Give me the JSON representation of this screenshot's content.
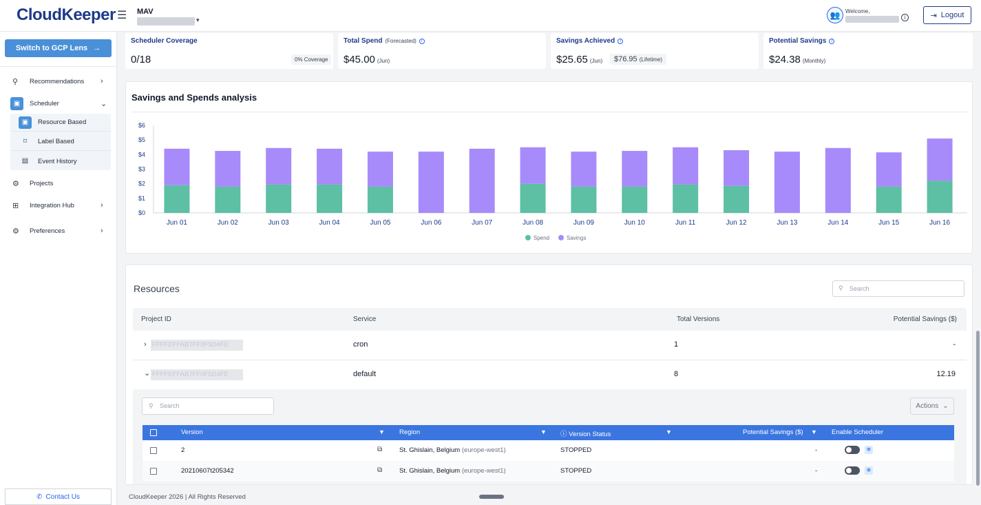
{
  "app": {
    "logo": "CloudKeeper",
    "org_name": "MAV",
    "welcome": "Welcome,",
    "logout_label": "Logout"
  },
  "sidebar": {
    "switch_label": "Switch to GCP Lens",
    "items": [
      {
        "label": "Recommendations",
        "icon": "wrench-icon"
      },
      {
        "label": "Scheduler",
        "icon": "calendar-icon"
      },
      {
        "label": "Projects",
        "icon": "projects-icon"
      },
      {
        "label": "Integration Hub",
        "icon": "grid-icon"
      },
      {
        "label": "Preferences",
        "icon": "gear-icon"
      }
    ],
    "scheduler_sub": [
      {
        "label": "Resource Based"
      },
      {
        "label": "Label Based"
      },
      {
        "label": "Event History"
      }
    ],
    "contact_label": "Contact Us"
  },
  "kpis": {
    "coverage": {
      "title": "Scheduler Coverage",
      "value": "0/18",
      "badge": "0% Coverage"
    },
    "spend": {
      "title": "Total Spend",
      "sub": "(Forecasted)",
      "value": "$45.00",
      "period": "(Jun)"
    },
    "savings": {
      "title": "Savings Achieved",
      "value": "$25.65",
      "period": "(Jun)",
      "lifetime_value": "$76.95",
      "lifetime_label": "(Lifetime)"
    },
    "potential": {
      "title": "Potential Savings",
      "value": "$24.38",
      "period": "(Monthly)"
    }
  },
  "chart_title": "Savings and Spends analysis",
  "chart_data": {
    "type": "bar",
    "stacked": true,
    "categories": [
      "Jun 01",
      "Jun 02",
      "Jun 03",
      "Jun 04",
      "Jun 05",
      "Jun 06",
      "Jun 07",
      "Jun 08",
      "Jun 09",
      "Jun 10",
      "Jun 11",
      "Jun 12",
      "Jun 13",
      "Jun 14",
      "Jun 15",
      "Jun 16"
    ],
    "series": [
      {
        "name": "Spend",
        "color": "#5dbfa4",
        "values": [
          1.9,
          1.8,
          1.95,
          1.95,
          1.8,
          0,
          0,
          2.0,
          1.8,
          1.8,
          1.95,
          1.85,
          0,
          0,
          1.8,
          2.2
        ]
      },
      {
        "name": "Savings",
        "color": "#a78bfa",
        "values": [
          2.5,
          2.45,
          2.5,
          2.45,
          2.4,
          4.2,
          4.4,
          2.5,
          2.4,
          2.45,
          2.55,
          2.45,
          4.2,
          4.45,
          2.35,
          2.9
        ]
      }
    ],
    "yticks": [
      "$0",
      "$1",
      "$2",
      "$3",
      "$4",
      "$5",
      "$6"
    ],
    "ylim": [
      0,
      6
    ],
    "legend": "bottom-center",
    "grid": false
  },
  "resources": {
    "title": "Resources",
    "search_placeholder": "Search",
    "columns": [
      "Project ID",
      "Service",
      "Total Versions",
      "Potential Savings ($)"
    ],
    "rows": [
      {
        "project_id": "FFFFEFFAB7FF0F5D4FE",
        "service": "cron",
        "versions": "1",
        "savings": "-",
        "caret": "›"
      },
      {
        "project_id": "FFFFEFFAB7FF0F5D4FE",
        "service": "default",
        "versions": "8",
        "savings": "12.19",
        "caret": "⌄"
      }
    ],
    "inner_search_placeholder": "Search",
    "actions_label": "Actions",
    "version_columns": [
      "Version",
      "Region",
      "Version Status",
      "Potential Savings ($)",
      "Enable Scheduler"
    ],
    "versions": [
      {
        "version": "2",
        "region": "St. Ghislain, Belgium",
        "region_code": "(europe-west1)",
        "status": "STOPPED",
        "savings": "-"
      },
      {
        "version": "20210607t205342",
        "region": "St. Ghislain, Belgium",
        "region_code": "(europe-west1)",
        "status": "STOPPED",
        "savings": "-"
      }
    ]
  },
  "footer": {
    "text": "CloudKeeper 2026 | All Rights Reserved"
  }
}
